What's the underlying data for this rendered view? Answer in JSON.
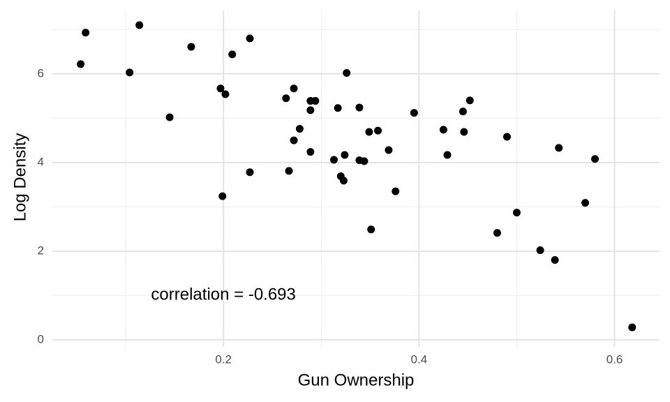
{
  "chart_data": {
    "type": "scatter",
    "x_label": "Gun Ownership",
    "y_label": "Log Density",
    "xlim": [
      0.025,
      0.646
    ],
    "ylim": [
      -0.16,
      7.43
    ],
    "xticks": [
      0.2,
      0.4,
      0.6
    ],
    "yticks": [
      0,
      2,
      4,
      6
    ],
    "x_minor_ticks": [
      0.1,
      0.3,
      0.5
    ],
    "y_minor_ticks": [
      1,
      3,
      5,
      7
    ],
    "grid": true,
    "color": "#000000",
    "x": [
      0.054,
      0.059,
      0.114,
      0.104,
      0.145,
      0.167,
      0.197,
      0.202,
      0.209,
      0.227,
      0.227,
      0.199,
      0.264,
      0.272,
      0.272,
      0.278,
      0.267,
      0.289,
      0.294,
      0.289,
      0.289,
      0.326,
      0.317,
      0.339,
      0.313,
      0.324,
      0.339,
      0.344,
      0.32,
      0.323,
      0.349,
      0.358,
      0.369,
      0.376,
      0.351,
      0.395,
      0.425,
      0.445,
      0.452,
      0.446,
      0.429,
      0.49,
      0.48,
      0.5,
      0.524,
      0.539,
      0.543,
      0.57,
      0.58,
      0.618
    ],
    "values": [
      6.22,
      6.93,
      7.1,
      6.03,
      5.02,
      6.61,
      5.67,
      5.54,
      6.44,
      6.8,
      3.78,
      3.24,
      5.45,
      5.67,
      4.5,
      4.76,
      3.81,
      5.39,
      5.39,
      5.18,
      4.24,
      6.02,
      5.23,
      5.24,
      4.06,
      4.17,
      4.05,
      4.03,
      3.69,
      3.59,
      4.69,
      4.72,
      4.28,
      3.35,
      2.49,
      5.12,
      4.74,
      5.15,
      5.4,
      4.69,
      4.17,
      4.58,
      2.41,
      2.87,
      2.02,
      1.8,
      4.33,
      3.09,
      4.08,
      0.28
    ],
    "annotations": [
      {
        "text": "correlation = -0.693",
        "x": 0.2,
        "y": 1
      }
    ]
  }
}
